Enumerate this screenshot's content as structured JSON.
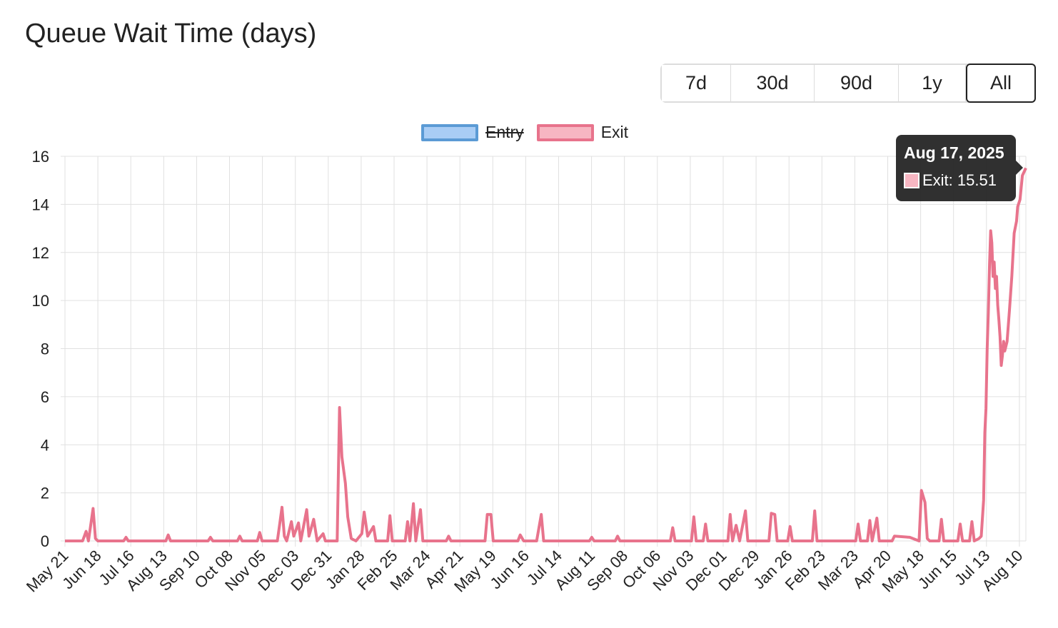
{
  "title": "Queue Wait Time (days)",
  "range_buttons": [
    {
      "label": "7d",
      "active": false
    },
    {
      "label": "30d",
      "active": false
    },
    {
      "label": "90d",
      "active": false
    },
    {
      "label": "1y",
      "active": false
    },
    {
      "label": "All",
      "active": true
    }
  ],
  "tooltip": {
    "title": "Aug 17, 2025",
    "line": "Exit: 15.51"
  },
  "colors": {
    "entry": "#5b9bd5",
    "entry_fill": "#a9cdf5",
    "exit": "#e8738c",
    "exit_fill": "#f7b6c2",
    "grid": "#e0e0e0"
  },
  "chart_data": {
    "type": "line",
    "title": "Queue Wait Time (days)",
    "legend": [
      {
        "name": "Entry",
        "hidden": true
      },
      {
        "name": "Exit",
        "hidden": false
      }
    ],
    "ylim": [
      0,
      16
    ],
    "yticks": [
      0,
      2,
      4,
      6,
      8,
      10,
      12,
      14,
      16
    ],
    "x_tick_labels": [
      "May 21",
      "Jun 18",
      "Jul 16",
      "Aug 13",
      "Sep 10",
      "Oct 08",
      "Nov 05",
      "Dec 03",
      "Dec 31",
      "Jan 28",
      "Feb 25",
      "Mar 24",
      "Apr 21",
      "May 19",
      "Jun 16",
      "Jul 14",
      "Aug 11",
      "Sep 08",
      "Oct 06",
      "Nov 03",
      "Dec 01",
      "Dec 29",
      "Jan 26",
      "Feb 23",
      "Mar 23",
      "Apr 20",
      "May 18",
      "Jun 15",
      "Jul 13",
      "Aug 10"
    ],
    "x_range": [
      "2023-05-21",
      "2025-08-17"
    ],
    "series": [
      {
        "name": "Exit",
        "points": [
          [
            "2023-05-21",
            0
          ],
          [
            "2023-06-05",
            0
          ],
          [
            "2023-06-08",
            0.4
          ],
          [
            "2023-06-10",
            0
          ],
          [
            "2023-06-14",
            1.35
          ],
          [
            "2023-06-16",
            0.1
          ],
          [
            "2023-06-18",
            0
          ],
          [
            "2023-07-10",
            0
          ],
          [
            "2023-07-12",
            0.15
          ],
          [
            "2023-07-14",
            0
          ],
          [
            "2023-08-15",
            0
          ],
          [
            "2023-08-17",
            0.25
          ],
          [
            "2023-08-19",
            0
          ],
          [
            "2023-09-20",
            0
          ],
          [
            "2023-09-22",
            0.15
          ],
          [
            "2023-09-24",
            0
          ],
          [
            "2023-10-15",
            0
          ],
          [
            "2023-10-17",
            0.2
          ],
          [
            "2023-10-19",
            0
          ],
          [
            "2023-11-01",
            0
          ],
          [
            "2023-11-03",
            0.35
          ],
          [
            "2023-11-05",
            0
          ],
          [
            "2023-11-18",
            0
          ],
          [
            "2023-11-20",
            0.7
          ],
          [
            "2023-11-22",
            1.4
          ],
          [
            "2023-11-24",
            0.2
          ],
          [
            "2023-11-26",
            0
          ],
          [
            "2023-11-30",
            0.8
          ],
          [
            "2023-12-02",
            0.2
          ],
          [
            "2023-12-06",
            0.75
          ],
          [
            "2023-12-08",
            0
          ],
          [
            "2023-12-13",
            1.3
          ],
          [
            "2023-12-15",
            0.2
          ],
          [
            "2023-12-19",
            0.9
          ],
          [
            "2023-12-22",
            0
          ],
          [
            "2023-12-27",
            0.3
          ],
          [
            "2023-12-29",
            0
          ],
          [
            "2024-01-08",
            0
          ],
          [
            "2024-01-10",
            5.55
          ],
          [
            "2024-01-12",
            3.5
          ],
          [
            "2024-01-15",
            2.4
          ],
          [
            "2024-01-17",
            1.0
          ],
          [
            "2024-01-20",
            0.1
          ],
          [
            "2024-01-24",
            0
          ],
          [
            "2024-01-29",
            0.3
          ],
          [
            "2024-01-31",
            1.2
          ],
          [
            "2024-02-03",
            0.2
          ],
          [
            "2024-02-08",
            0.6
          ],
          [
            "2024-02-10",
            0
          ],
          [
            "2024-02-20",
            0
          ],
          [
            "2024-02-22",
            1.05
          ],
          [
            "2024-02-24",
            0
          ],
          [
            "2024-03-06",
            0
          ],
          [
            "2024-03-08",
            0.8
          ],
          [
            "2024-03-10",
            0
          ],
          [
            "2024-03-13",
            1.55
          ],
          [
            "2024-03-15",
            0
          ],
          [
            "2024-03-19",
            1.3
          ],
          [
            "2024-03-21",
            0
          ],
          [
            "2024-04-10",
            0
          ],
          [
            "2024-04-12",
            0.2
          ],
          [
            "2024-04-14",
            0
          ],
          [
            "2024-05-13",
            0
          ],
          [
            "2024-05-15",
            1.1
          ],
          [
            "2024-05-18",
            1.1
          ],
          [
            "2024-05-20",
            0
          ],
          [
            "2024-06-10",
            0
          ],
          [
            "2024-06-12",
            0.25
          ],
          [
            "2024-06-15",
            0
          ],
          [
            "2024-06-26",
            0
          ],
          [
            "2024-06-30",
            1.1
          ],
          [
            "2024-07-02",
            0
          ],
          [
            "2024-08-10",
            0
          ],
          [
            "2024-08-12",
            0.15
          ],
          [
            "2024-08-14",
            0
          ],
          [
            "2024-09-01",
            0
          ],
          [
            "2024-09-03",
            0.2
          ],
          [
            "2024-09-05",
            0
          ],
          [
            "2024-10-18",
            0
          ],
          [
            "2024-10-20",
            0.55
          ],
          [
            "2024-10-22",
            0
          ],
          [
            "2024-11-05",
            0
          ],
          [
            "2024-11-07",
            1.0
          ],
          [
            "2024-11-09",
            0
          ],
          [
            "2024-11-15",
            0
          ],
          [
            "2024-11-17",
            0.7
          ],
          [
            "2024-11-19",
            0
          ],
          [
            "2024-12-06",
            0
          ],
          [
            "2024-12-08",
            1.1
          ],
          [
            "2024-12-10",
            0
          ],
          [
            "2024-12-13",
            0.65
          ],
          [
            "2024-12-16",
            0
          ],
          [
            "2024-12-21",
            1.25
          ],
          [
            "2024-12-23",
            0
          ],
          [
            "2025-01-10",
            0
          ],
          [
            "2025-01-12",
            1.15
          ],
          [
            "2025-01-15",
            1.1
          ],
          [
            "2025-01-17",
            0
          ],
          [
            "2025-01-26",
            0
          ],
          [
            "2025-01-28",
            0.6
          ],
          [
            "2025-01-30",
            0
          ],
          [
            "2025-02-16",
            0
          ],
          [
            "2025-02-18",
            1.25
          ],
          [
            "2025-02-20",
            0
          ],
          [
            "2025-03-25",
            0
          ],
          [
            "2025-03-27",
            0.7
          ],
          [
            "2025-03-29",
            0
          ],
          [
            "2025-04-04",
            0
          ],
          [
            "2025-04-06",
            0.85
          ],
          [
            "2025-04-08",
            0
          ],
          [
            "2025-04-12",
            0.95
          ],
          [
            "2025-04-14",
            0
          ],
          [
            "2025-04-25",
            0
          ],
          [
            "2025-04-27",
            0.2
          ],
          [
            "2025-05-10",
            0.15
          ],
          [
            "2025-05-18",
            0
          ],
          [
            "2025-05-20",
            2.1
          ],
          [
            "2025-05-23",
            1.6
          ],
          [
            "2025-05-25",
            0.1
          ],
          [
            "2025-05-27",
            0
          ],
          [
            "2025-06-04",
            0
          ],
          [
            "2025-06-06",
            0.9
          ],
          [
            "2025-06-08",
            0
          ],
          [
            "2025-06-20",
            0
          ],
          [
            "2025-06-22",
            0.7
          ],
          [
            "2025-06-24",
            0
          ],
          [
            "2025-06-30",
            0
          ],
          [
            "2025-07-02",
            0.8
          ],
          [
            "2025-07-04",
            0
          ],
          [
            "2025-07-08",
            0.1
          ],
          [
            "2025-07-10",
            0.2
          ],
          [
            "2025-07-12",
            1.7
          ],
          [
            "2025-07-13",
            4.5
          ],
          [
            "2025-07-14",
            5.5
          ],
          [
            "2025-07-15",
            8.0
          ],
          [
            "2025-07-16",
            9.5
          ],
          [
            "2025-07-17",
            11.5
          ],
          [
            "2025-07-18",
            12.9
          ],
          [
            "2025-07-19",
            12.4
          ],
          [
            "2025-07-20",
            11.0
          ],
          [
            "2025-07-21",
            11.6
          ],
          [
            "2025-07-22",
            10.5
          ],
          [
            "2025-07-23",
            11.0
          ],
          [
            "2025-07-24",
            9.8
          ],
          [
            "2025-07-25",
            9.2
          ],
          [
            "2025-07-26",
            8.5
          ],
          [
            "2025-07-27",
            7.3
          ],
          [
            "2025-07-28",
            7.7
          ],
          [
            "2025-07-29",
            8.3
          ],
          [
            "2025-07-30",
            7.9
          ],
          [
            "2025-08-01",
            8.3
          ],
          [
            "2025-08-03",
            9.6
          ],
          [
            "2025-08-05",
            11.0
          ],
          [
            "2025-08-07",
            12.8
          ],
          [
            "2025-08-09",
            13.3
          ],
          [
            "2025-08-10",
            13.9
          ],
          [
            "2025-08-12",
            14.2
          ],
          [
            "2025-08-14",
            15.2
          ],
          [
            "2025-08-17",
            15.51
          ]
        ]
      }
    ]
  }
}
